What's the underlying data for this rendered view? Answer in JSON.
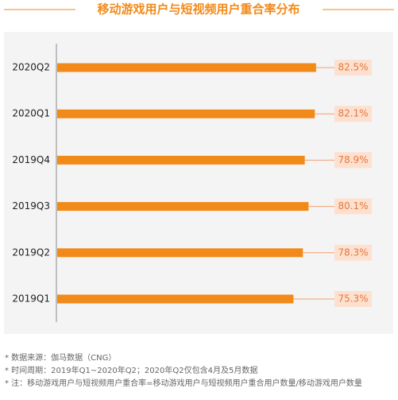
{
  "chart_data": {
    "type": "bar",
    "orientation": "horizontal",
    "title": "移动游戏用户与短视频用户重合率分布",
    "categories": [
      "2020Q2",
      "2020Q1",
      "2019Q4",
      "2019Q3",
      "2019Q2",
      "2019Q1"
    ],
    "values": [
      82.5,
      82.1,
      78.9,
      80.1,
      78.3,
      75.3
    ],
    "value_labels": [
      "82.5%",
      "82.1%",
      "78.9%",
      "80.1%",
      "78.3%",
      "75.3%"
    ],
    "color": "#f28a1a",
    "notes": [
      "* 数据来源：伽马数据（CNG）",
      "* 时间周期：2019年Q1~2020年Q2；2020年Q2仅包含4月及5月数据",
      "* 注：移动游戏用户与短视频用户重合率=移动游戏用户与短视频用户重合用户数量/移动游戏用户数量"
    ]
  }
}
